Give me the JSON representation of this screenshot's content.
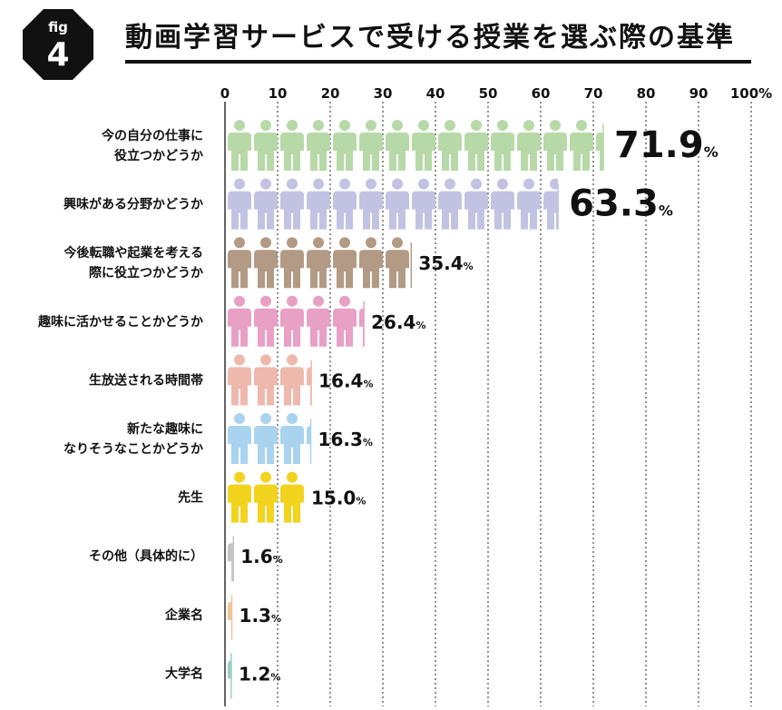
{
  "header": {
    "fig_label": "fig",
    "fig_number": "4",
    "title": "動画学習サービスで受ける授業を選ぶ際の基準"
  },
  "chart_data": {
    "type": "bar",
    "title": "動画学習サービスで受ける授業を選ぶ際の基準",
    "xlim": [
      0,
      100
    ],
    "ticks": [
      "0",
      "10",
      "20",
      "30",
      "40",
      "50",
      "60",
      "70",
      "80",
      "90",
      "100%"
    ],
    "grid": true,
    "categories": [
      "今の自分の仕事に\n役立つかどうか",
      "興味がある分野かどうか",
      "今後転職や起業を考える\n際に役立つかどうか",
      "趣味に活かせることかどうか",
      "生放送される時間帯",
      "新たな趣味に\nなりそうなことかどうか",
      "先生",
      "その他（具体的に）",
      "企業名",
      "大学名"
    ],
    "values": [
      71.9,
      63.3,
      35.4,
      26.4,
      16.4,
      16.3,
      15.0,
      1.6,
      1.3,
      1.2
    ],
    "value_labels": [
      "71.9",
      "63.3",
      "35.4",
      "26.4",
      "16.4",
      "16.3",
      "15.0",
      "1.6",
      "1.3",
      "1.2"
    ],
    "unit": "%",
    "colors": [
      "#b7d9a8",
      "#c2c3e3",
      "#b39a85",
      "#e8a0c5",
      "#eeb8ad",
      "#a9d3ee",
      "#f2d31e",
      "#c4c4c4",
      "#f0c39a",
      "#9bcfc4"
    ]
  }
}
